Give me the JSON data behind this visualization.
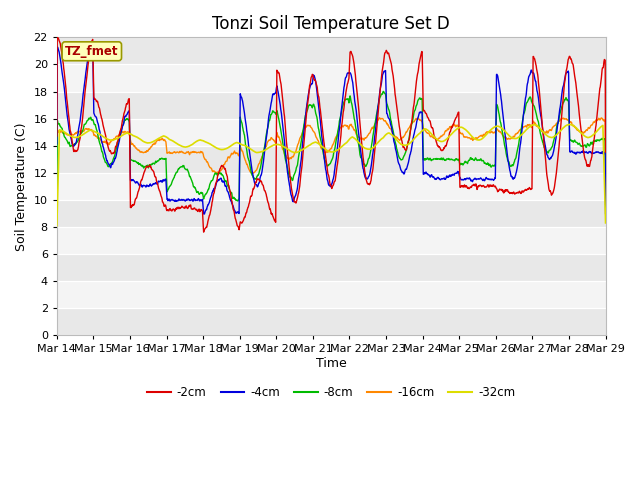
{
  "title": "Tonzi Soil Temperature Set D",
  "xlabel": "Time",
  "ylabel": "Soil Temperature (C)",
  "ylim": [
    0,
    22
  ],
  "yticks": [
    0,
    2,
    4,
    6,
    8,
    10,
    12,
    14,
    16,
    18,
    20,
    22
  ],
  "x_labels": [
    "Mar 14",
    "Mar 15",
    "Mar 16",
    "Mar 17",
    "Mar 18",
    "Mar 19",
    "Mar 20",
    "Mar 21",
    "Mar 22",
    "Mar 23",
    "Mar 24",
    "Mar 25",
    "Mar 26",
    "Mar 27",
    "Mar 28",
    "Mar 29"
  ],
  "legend_labels": [
    "-2cm",
    "-4cm",
    "-8cm",
    "-16cm",
    "-32cm"
  ],
  "legend_colors": [
    "#dd0000",
    "#0000dd",
    "#00bb00",
    "#ff8800",
    "#dddd00"
  ],
  "annotation_text": "TZ_fmet",
  "annotation_color": "#aa0000",
  "annotation_bg": "#ffffbb",
  "title_fontsize": 12,
  "axis_label_fontsize": 9,
  "tick_fontsize": 8,
  "n_days": 15,
  "pts_per_day": 96
}
